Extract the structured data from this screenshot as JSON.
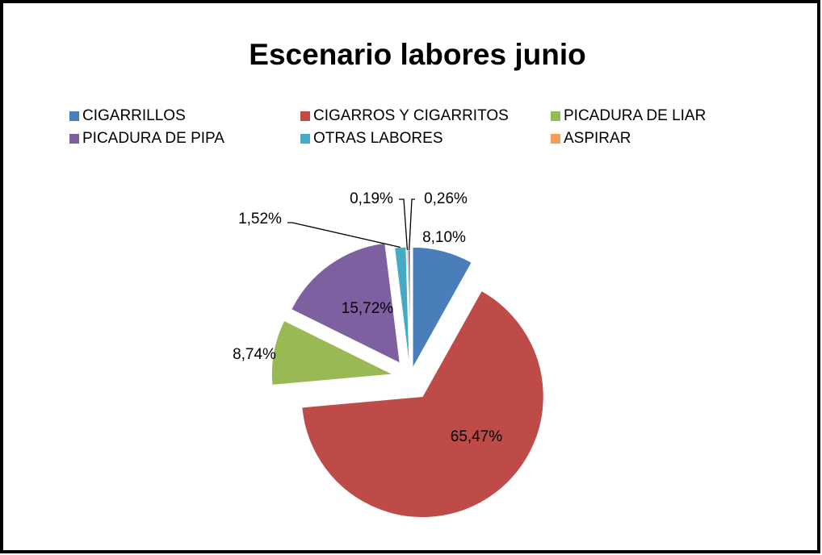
{
  "chart_data": {
    "type": "pie",
    "title": "Escenario labores junio",
    "categories": [
      "CIGARRILLOS",
      "CIGARROS Y CIGARRITOS",
      "PICADURA DE LIAR",
      "PICADURA DE PIPA",
      "OTRAS LABORES",
      "ASPIRAR",
      null
    ],
    "values": [
      8.1,
      65.47,
      8.74,
      15.72,
      1.52,
      0.19,
      0.26
    ],
    "value_labels": [
      "8,10%",
      "65,47%",
      "8,74%",
      "15,72%",
      "1,52%",
      "0,19%",
      "0,26%"
    ],
    "colors": [
      "#4a7ebb",
      "#be4b48",
      "#98b954",
      "#7d60a0",
      "#46aac5",
      "#f59d56",
      "#2c4d75"
    ],
    "legend": "top"
  }
}
